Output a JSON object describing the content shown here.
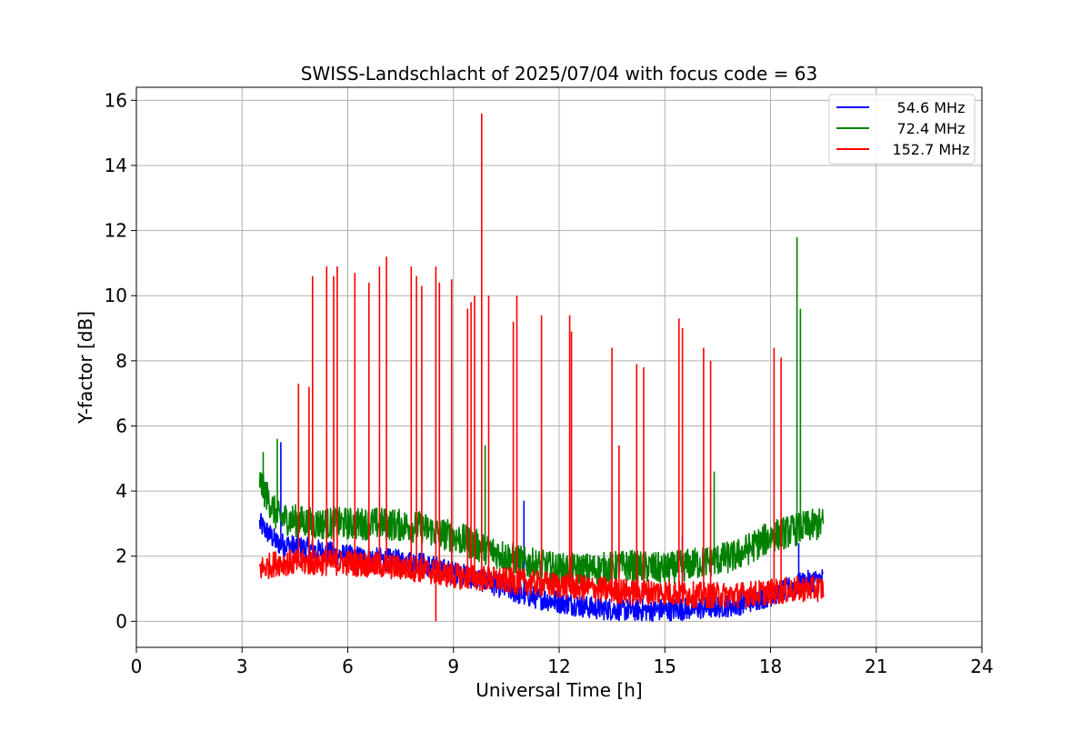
{
  "chart_data": {
    "type": "line",
    "title": "SWISS-Landschlacht of 2025/07/04 with focus code = 63",
    "xlabel": "Universal Time [h]",
    "ylabel": "Y-factor [dB]",
    "xlim": [
      0,
      24
    ],
    "ylim": [
      -0.8,
      16.4
    ],
    "xticks": [
      0,
      3,
      6,
      9,
      12,
      15,
      18,
      21,
      24
    ],
    "yticks": [
      0,
      2,
      4,
      6,
      8,
      10,
      12,
      14,
      16
    ],
    "grid": true,
    "legend_position": "top-right",
    "series": [
      {
        "name": "54.6 MHz",
        "color": "#0000ff",
        "x_range": [
          3.5,
          19.5
        ],
        "baseline": [
          [
            3.5,
            3.0
          ],
          [
            4.0,
            2.4
          ],
          [
            5.0,
            2.2
          ],
          [
            6.0,
            2.0
          ],
          [
            7.0,
            1.9
          ],
          [
            8.0,
            1.8
          ],
          [
            9.0,
            1.5
          ],
          [
            10.0,
            1.2
          ],
          [
            11.0,
            0.8
          ],
          [
            12.0,
            0.6
          ],
          [
            13.0,
            0.4
          ],
          [
            14.0,
            0.35
          ],
          [
            15.0,
            0.35
          ],
          [
            16.0,
            0.4
          ],
          [
            17.0,
            0.5
          ],
          [
            18.0,
            0.8
          ],
          [
            19.0,
            1.2
          ],
          [
            19.5,
            1.3
          ]
        ],
        "noise": 0.35,
        "spikes": [
          [
            4.1,
            5.5
          ],
          [
            11.0,
            3.7
          ],
          [
            15.5,
            2.6
          ],
          [
            18.8,
            2.4
          ]
        ]
      },
      {
        "name": "72.4 MHz",
        "color": "#008000",
        "x_range": [
          3.5,
          19.5
        ],
        "baseline": [
          [
            3.5,
            4.3
          ],
          [
            4.0,
            3.2
          ],
          [
            5.0,
            3.0
          ],
          [
            6.0,
            3.0
          ],
          [
            7.0,
            3.0
          ],
          [
            8.0,
            2.9
          ],
          [
            9.0,
            2.6
          ],
          [
            10.0,
            2.2
          ],
          [
            11.0,
            1.8
          ],
          [
            12.0,
            1.6
          ],
          [
            13.0,
            1.6
          ],
          [
            14.0,
            1.7
          ],
          [
            15.0,
            1.6
          ],
          [
            16.0,
            1.8
          ],
          [
            17.0,
            2.0
          ],
          [
            18.0,
            2.6
          ],
          [
            19.0,
            2.9
          ],
          [
            19.5,
            3.0
          ]
        ],
        "noise": 0.5,
        "spikes": [
          [
            3.6,
            5.2
          ],
          [
            4.0,
            5.6
          ],
          [
            9.9,
            5.4
          ],
          [
            16.4,
            4.6
          ],
          [
            18.75,
            11.8
          ],
          [
            18.85,
            9.6
          ]
        ]
      },
      {
        "name": "152.7 MHz",
        "color": "#ff0000",
        "x_range": [
          3.5,
          19.5
        ],
        "baseline": [
          [
            3.5,
            1.6
          ],
          [
            4.0,
            1.8
          ],
          [
            5.0,
            1.8
          ],
          [
            6.0,
            1.8
          ],
          [
            7.0,
            1.7
          ],
          [
            8.0,
            1.6
          ],
          [
            9.0,
            1.4
          ],
          [
            10.0,
            1.3
          ],
          [
            11.0,
            1.2
          ],
          [
            12.0,
            1.1
          ],
          [
            13.0,
            1.0
          ],
          [
            14.0,
            0.9
          ],
          [
            15.0,
            0.9
          ],
          [
            16.0,
            0.8
          ],
          [
            17.0,
            0.8
          ],
          [
            18.0,
            0.9
          ],
          [
            19.0,
            1.0
          ],
          [
            19.5,
            1.0
          ]
        ],
        "noise": 0.4,
        "spikes": [
          [
            4.6,
            7.3
          ],
          [
            4.9,
            7.2
          ],
          [
            5.0,
            10.6
          ],
          [
            5.4,
            10.9
          ],
          [
            5.6,
            10.6
          ],
          [
            5.7,
            10.9
          ],
          [
            6.2,
            10.7
          ],
          [
            6.6,
            10.4
          ],
          [
            6.9,
            10.9
          ],
          [
            7.1,
            11.2
          ],
          [
            7.8,
            10.9
          ],
          [
            7.95,
            10.6
          ],
          [
            8.1,
            10.3
          ],
          [
            8.5,
            10.9
          ],
          [
            8.6,
            10.4
          ],
          [
            8.95,
            10.5
          ],
          [
            9.4,
            9.6
          ],
          [
            9.5,
            9.8
          ],
          [
            9.6,
            10.0
          ],
          [
            9.8,
            15.6
          ],
          [
            10.0,
            10.0
          ],
          [
            10.7,
            9.2
          ],
          [
            10.8,
            10.0
          ],
          [
            11.5,
            9.4
          ],
          [
            12.3,
            9.4
          ],
          [
            12.35,
            8.9
          ],
          [
            13.5,
            8.4
          ],
          [
            13.7,
            5.4
          ],
          [
            14.2,
            7.9
          ],
          [
            14.4,
            7.8
          ],
          [
            15.4,
            9.3
          ],
          [
            15.5,
            9.0
          ],
          [
            16.1,
            8.4
          ],
          [
            16.3,
            8.0
          ],
          [
            18.1,
            8.4
          ],
          [
            18.3,
            8.1
          ]
        ],
        "dips": [
          [
            8.5,
            0.0
          ]
        ]
      }
    ]
  }
}
